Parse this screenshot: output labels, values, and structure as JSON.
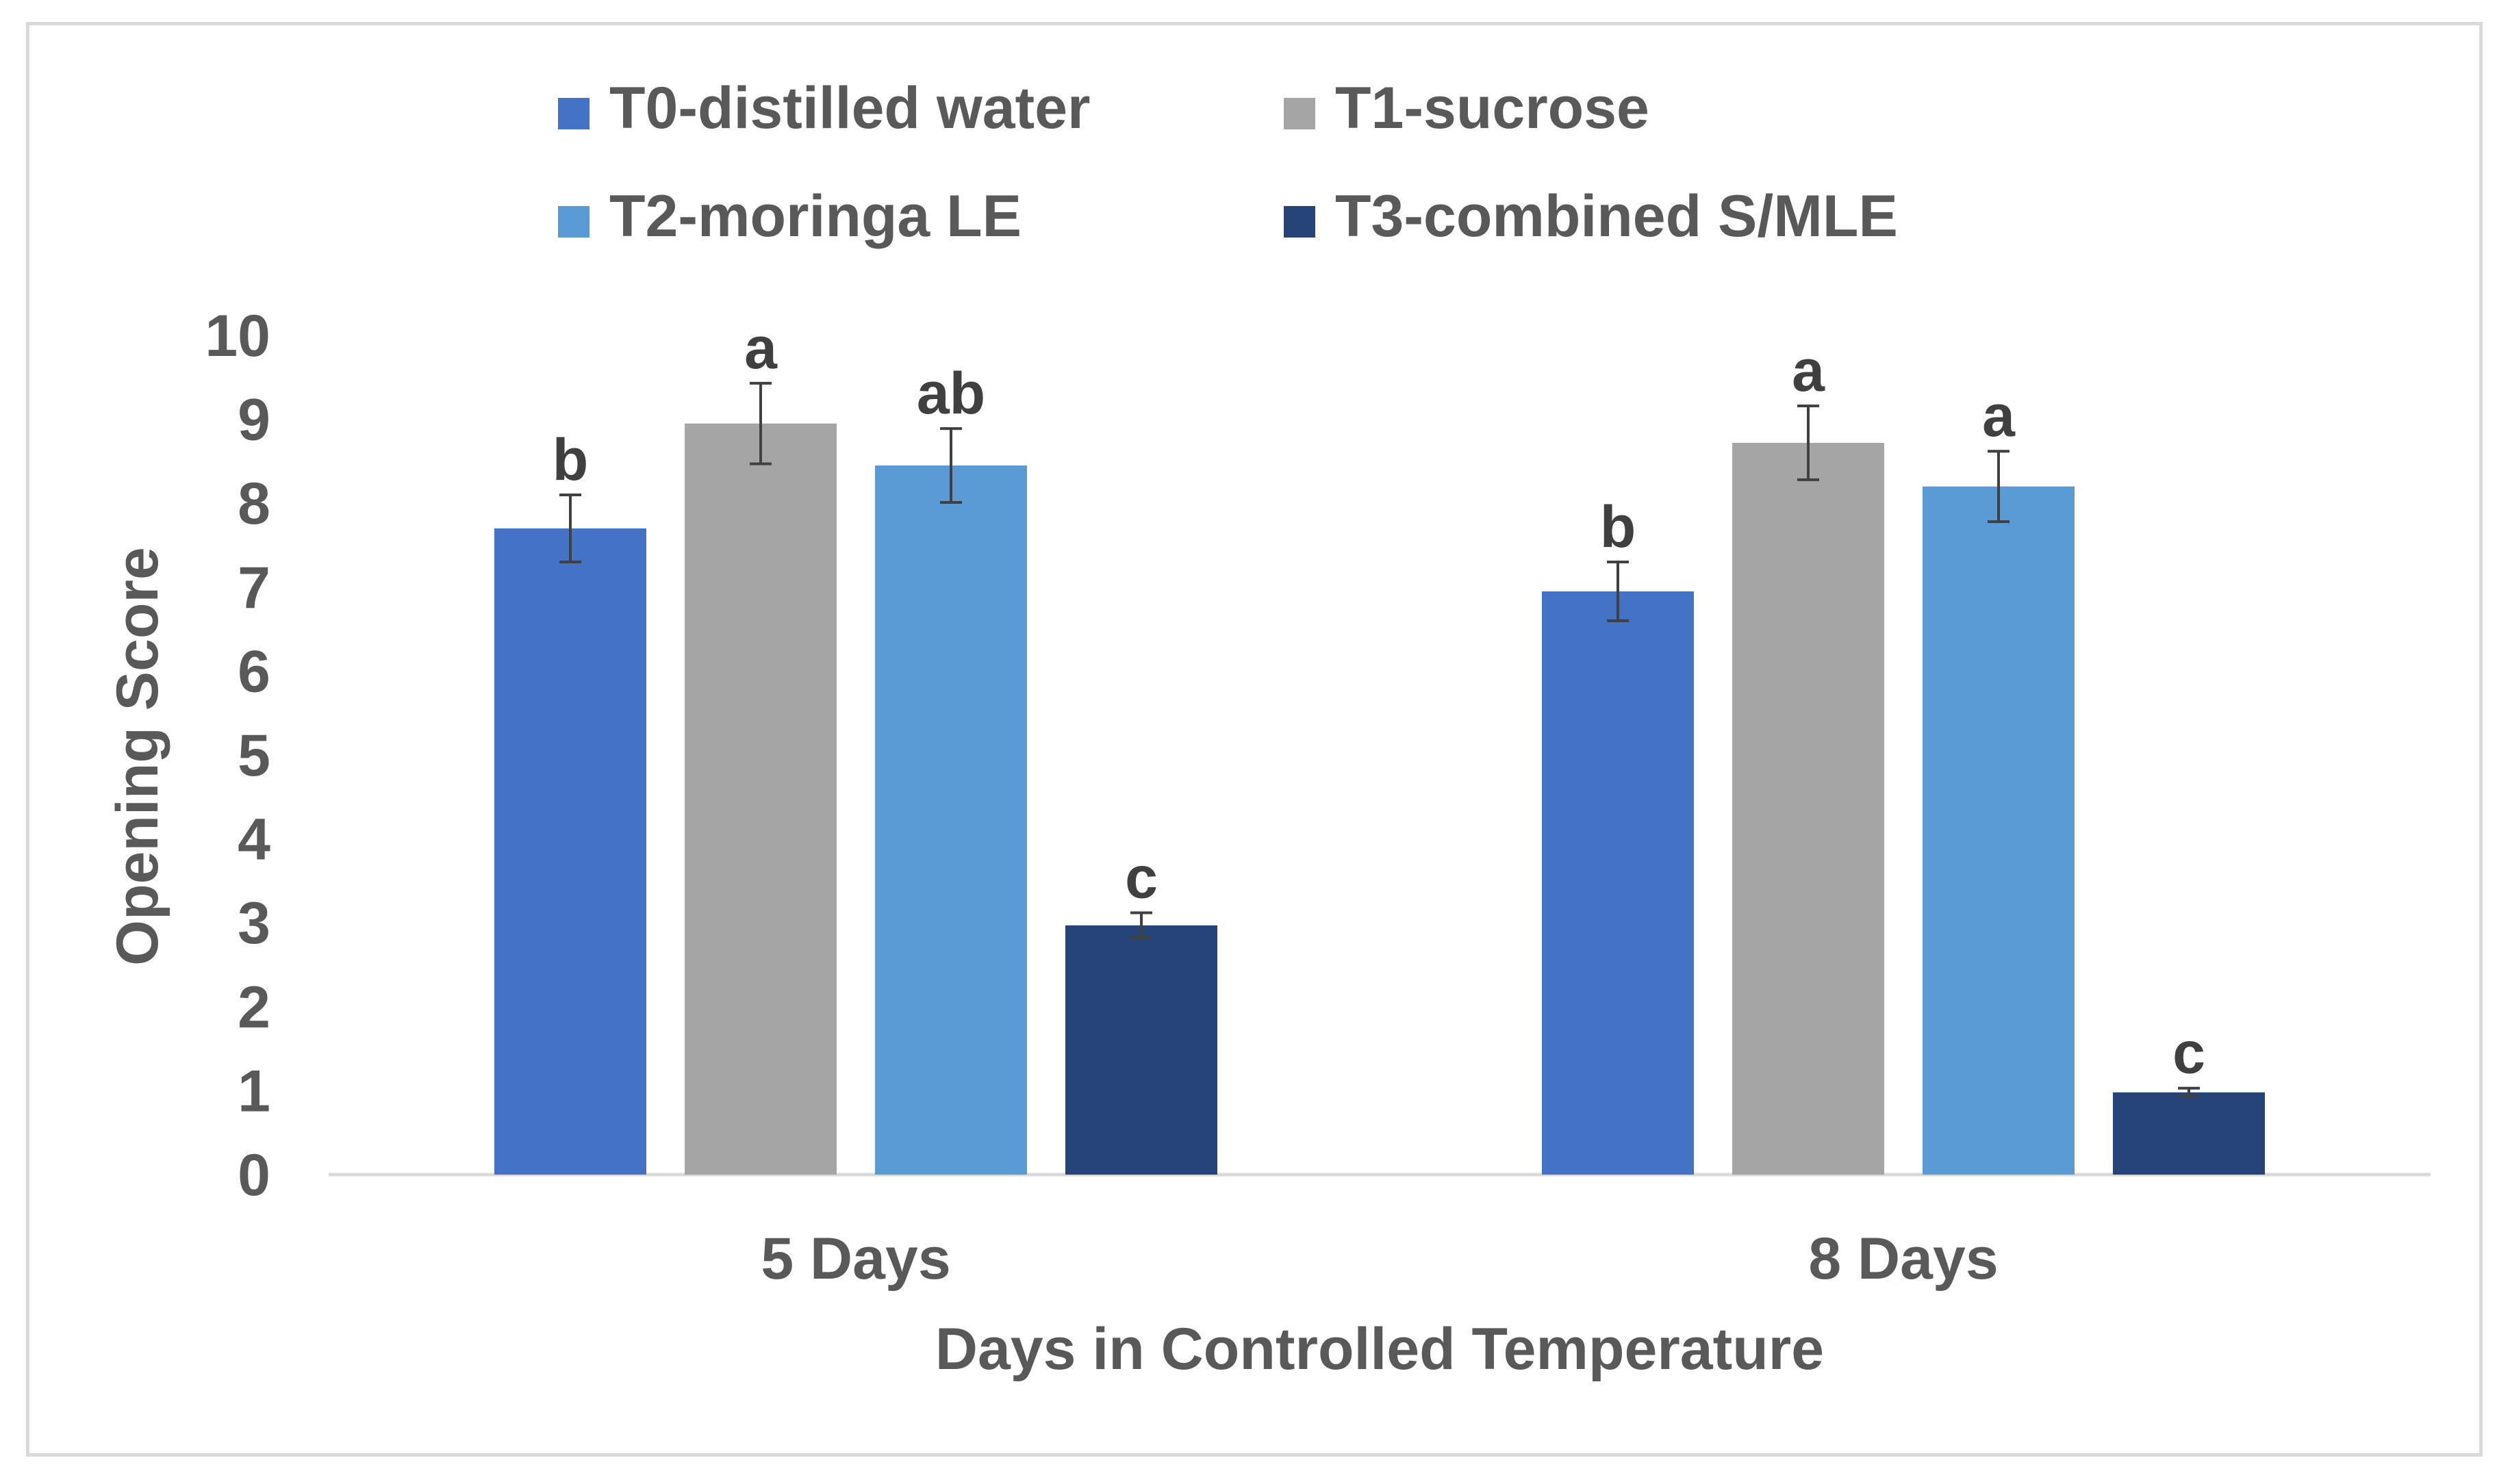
{
  "chart_data": {
    "type": "bar",
    "title": "",
    "xlabel": "Days in Controlled Temperature",
    "ylabel": "Opening Score",
    "ylim": [
      0,
      10
    ],
    "yticks": [
      "0",
      "1",
      "2",
      "3",
      "4",
      "5",
      "6",
      "7",
      "8",
      "9",
      "10"
    ],
    "categories": [
      "5 Days",
      "8 Days"
    ],
    "gridlines": false,
    "legend_position": "top",
    "series": [
      {
        "name": "T0-distilled water",
        "color": "#4472c4",
        "values": [
          7.7,
          6.95
        ],
        "errors": [
          0.4,
          0.35
        ],
        "letters": [
          "b",
          "b"
        ]
      },
      {
        "name": "T1-sucrose",
        "color": "#a5a5a5",
        "values": [
          8.95,
          8.72
        ],
        "errors": [
          0.48,
          0.44
        ],
        "letters": [
          "a",
          "a"
        ]
      },
      {
        "name": "T2-moringa LE",
        "color": "#5b9bd5",
        "values": [
          8.45,
          8.2
        ],
        "errors": [
          0.44,
          0.42
        ],
        "letters": [
          "ab",
          "a"
        ]
      },
      {
        "name": "T3-combined S/MLE",
        "color": "#264478",
        "values": [
          2.97,
          0.98
        ],
        "errors": [
          0.15,
          0.05
        ],
        "letters": [
          "c",
          "c"
        ]
      }
    ]
  }
}
